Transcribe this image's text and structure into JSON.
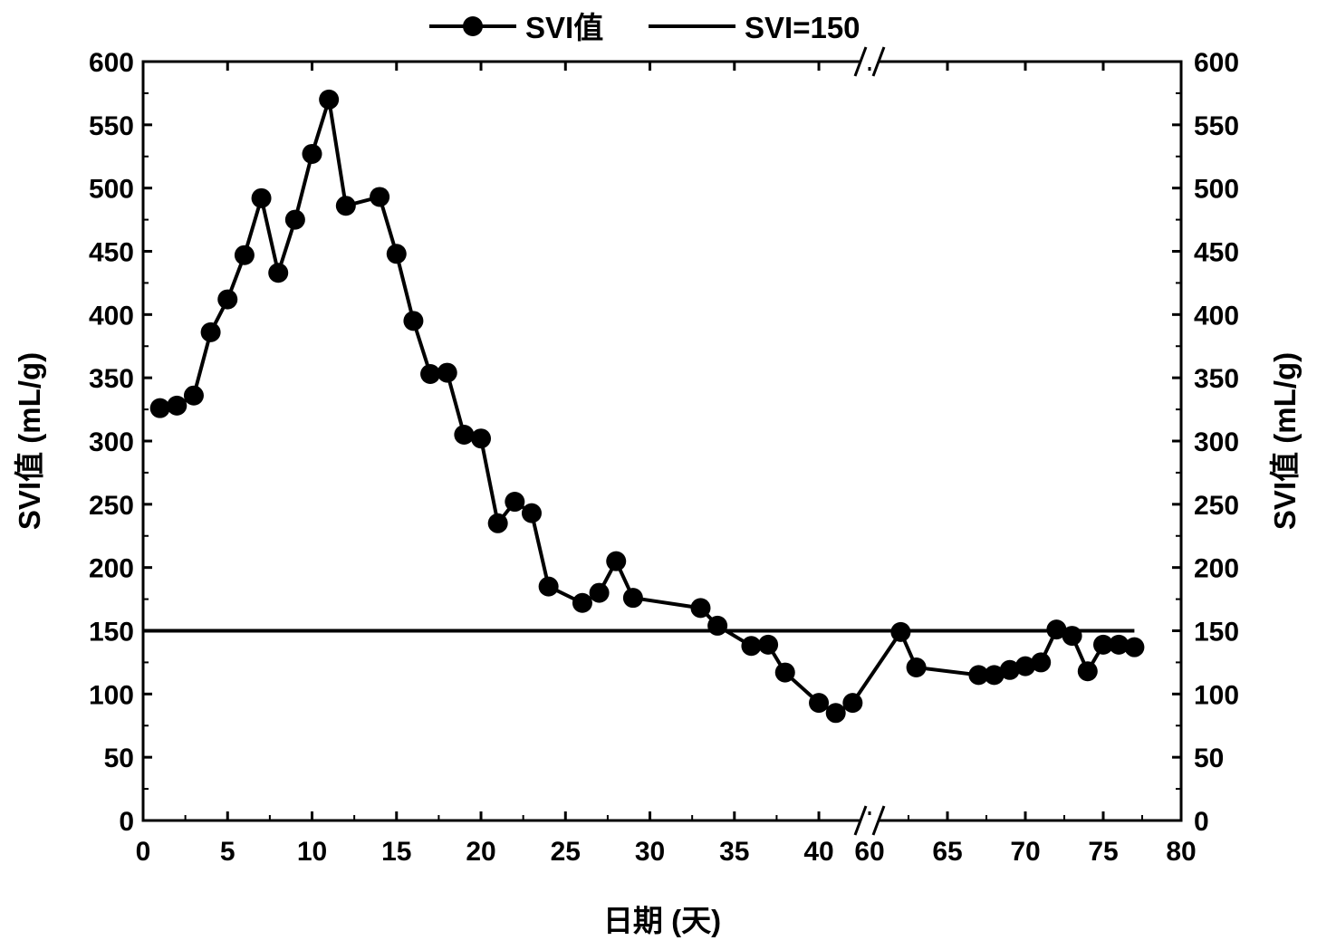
{
  "chart_data": {
    "type": "line",
    "xlabel": "日期 (天)",
    "ylabel": "SVI值 (mL/g)",
    "ylabel_right": "SVI值 (mL/g)",
    "ylim": [
      0,
      600
    ],
    "yticks": [
      0,
      50,
      100,
      150,
      200,
      250,
      300,
      350,
      400,
      450,
      500,
      550,
      600
    ],
    "x_axis_break": {
      "from": 43,
      "to": 60
    },
    "xlim_segments": [
      [
        0,
        43
      ],
      [
        60,
        80
      ]
    ],
    "xticks": [
      0,
      5,
      10,
      15,
      20,
      25,
      30,
      35,
      40,
      60,
      65,
      70,
      75,
      80
    ],
    "grid": false,
    "legend_position": "top-center",
    "series": [
      {
        "name": "SVI值",
        "style": "line-with-circle-markers",
        "color": "#000000",
        "x": [
          1,
          2,
          3,
          4,
          5,
          6,
          7,
          8,
          9,
          10,
          11,
          12,
          14,
          15,
          16,
          17,
          18,
          19,
          20,
          21,
          22,
          23,
          24,
          26,
          27,
          28,
          29,
          33,
          34,
          36,
          37,
          38,
          40,
          41,
          42,
          62,
          63,
          67,
          68,
          69,
          70,
          71,
          72,
          73,
          74,
          75,
          76,
          77
        ],
        "values": [
          326,
          328,
          336,
          386,
          412,
          447,
          492,
          433,
          475,
          527,
          570,
          486,
          493,
          448,
          395,
          353,
          354,
          305,
          302,
          235,
          252,
          243,
          185,
          172,
          180,
          205,
          176,
          168,
          154,
          138,
          139,
          117,
          93,
          85,
          93,
          149,
          121,
          115,
          115,
          119,
          122,
          125,
          151,
          146,
          118,
          139,
          139,
          137
        ]
      },
      {
        "name": "SVI=150",
        "style": "line",
        "color": "#000000",
        "x": [
          0,
          77
        ],
        "values": [
          150,
          150
        ]
      }
    ]
  }
}
